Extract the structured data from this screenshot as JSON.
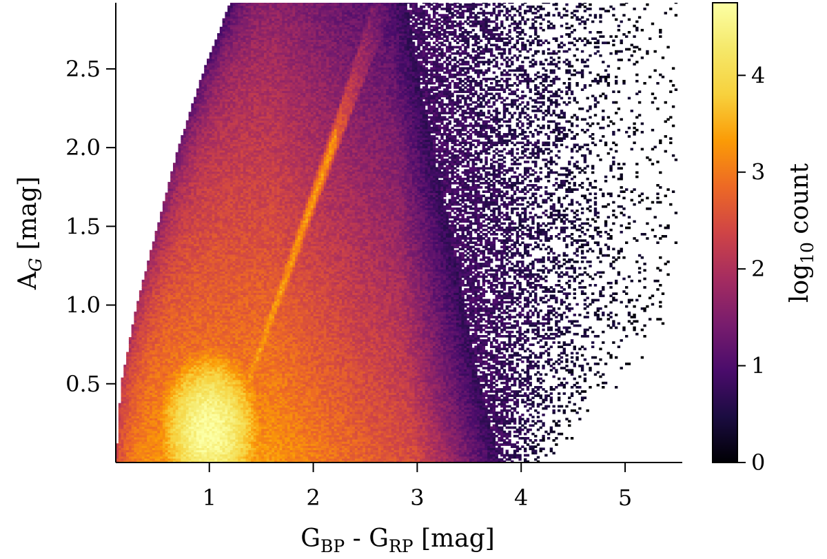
{
  "chart_data": {
    "type": "heatmap",
    "title": "",
    "xlabel": {
      "main": "G",
      "sub1": "BP",
      "mid": " - G",
      "sub2": "RP",
      "unit": " [mag]"
    },
    "ylabel": {
      "main": "A",
      "sub": "G",
      "unit": " [mag]"
    },
    "xlim": [
      0.1,
      5.55
    ],
    "ylim": [
      0.0,
      2.92
    ],
    "x_ticks": [
      {
        "value": 1,
        "label": "1"
      },
      {
        "value": 2,
        "label": "2"
      },
      {
        "value": 3,
        "label": "3"
      },
      {
        "value": 4,
        "label": "4"
      },
      {
        "value": 5,
        "label": "5"
      }
    ],
    "y_ticks": [
      {
        "value": 0.5,
        "label": "0.5"
      },
      {
        "value": 1.0,
        "label": "1.0"
      },
      {
        "value": 1.5,
        "label": "1.5"
      },
      {
        "value": 2.0,
        "label": "2.0"
      },
      {
        "value": 2.5,
        "label": "2.5"
      }
    ],
    "colorbar": {
      "label": {
        "pre": "log",
        "sub": "10",
        "post": " count"
      },
      "range": [
        0,
        4.75
      ],
      "ticks": [
        {
          "value": 0,
          "label": "0"
        },
        {
          "value": 1,
          "label": "1"
        },
        {
          "value": 2,
          "label": "2"
        },
        {
          "value": 3,
          "label": "3"
        },
        {
          "value": 4,
          "label": "4"
        }
      ],
      "colormap": "inferno"
    },
    "density_regions": [
      {
        "description": "left boundary of populated region",
        "polyline_x_at_A": [
          [
            0.0,
            0.1
          ],
          [
            0.5,
            0.15
          ],
          [
            1.0,
            0.3
          ],
          [
            1.5,
            0.5
          ],
          [
            2.0,
            0.7
          ],
          [
            2.5,
            0.95
          ],
          [
            2.92,
            1.2
          ]
        ]
      },
      {
        "description": "dense-core right edge (log count ≈ 1)",
        "polyline_x_at_A": [
          [
            0.0,
            3.8
          ],
          [
            0.5,
            3.6
          ],
          [
            1.0,
            3.45
          ],
          [
            1.5,
            3.3
          ],
          [
            2.0,
            3.15
          ],
          [
            2.5,
            3.0
          ],
          [
            2.92,
            2.9
          ]
        ]
      },
      {
        "description": "sparse tail right edge",
        "polyline_x_at_A": [
          [
            0.0,
            4.3
          ],
          [
            0.5,
            5.0
          ],
          [
            1.0,
            5.5
          ],
          [
            2.92,
            5.5
          ]
        ]
      },
      {
        "description": "peak density locus",
        "point": [
          1.0,
          0.2
        ],
        "log_count": 4.7
      },
      {
        "description": "diagonal ridge",
        "from": [
          1.1,
          0.0
        ],
        "to": [
          2.5,
          2.6
        ],
        "log_count": 3.3
      }
    ]
  }
}
